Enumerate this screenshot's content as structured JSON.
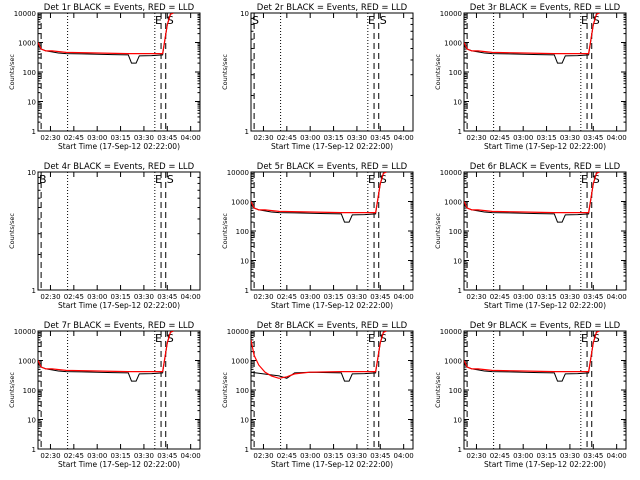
{
  "colors": {
    "events": "#000000",
    "lld": "#ff0000",
    "axes": "#000000"
  },
  "chart_data": [
    {
      "type": "line",
      "title": "Det 1r BLACK = Events, RED = LLD",
      "xlabel": "Start Time (17-Sep-12 02:22:00)",
      "ylabel": "Counts/sec",
      "x_ticks": [
        "02:30",
        "02:45",
        "03:00",
        "03:15",
        "03:30",
        "03:45",
        "04:00"
      ],
      "y_ticks": [
        "1",
        "10",
        "100",
        "1000",
        "10000"
      ],
      "y_scale": "log",
      "ylim": [
        1,
        10000
      ],
      "markers": [
        {
          "label": "E",
          "at": "03:41"
        },
        {
          "label": "S",
          "at": "03:44"
        }
      ],
      "series": [
        {
          "name": "Events",
          "x": [
            "02:22",
            "02:24",
            "02:27",
            "02:31",
            "02:35",
            "02:40",
            "02:50",
            "03:00",
            "03:10",
            "03:20",
            "03:22",
            "03:25",
            "03:27",
            "03:35",
            "03:42",
            "03:45",
            "03:47",
            "03:49"
          ],
          "y": [
            800,
            600,
            520,
            480,
            440,
            420,
            410,
            400,
            390,
            380,
            200,
            200,
            350,
            360,
            380,
            4000,
            9000,
            10000
          ]
        },
        {
          "name": "LLD",
          "x": [
            "02:22",
            "02:24",
            "02:27",
            "02:31",
            "02:40",
            "03:00",
            "03:20",
            "03:30",
            "03:42",
            "03:45",
            "03:47",
            "03:49"
          ],
          "y": [
            1000,
            600,
            520,
            520,
            460,
            440,
            420,
            420,
            420,
            4000,
            9000,
            10000
          ]
        }
      ]
    },
    {
      "type": "line",
      "title": "Det 2r BLACK = Events, RED = LLD",
      "xlabel": "Start Time (17-Sep-12 02:22:00)",
      "ylabel": "Counts/sec",
      "x_ticks": [
        "02:30",
        "02:45",
        "03:00",
        "03:15",
        "03:30",
        "03:45",
        "04:00"
      ],
      "y_ticks": [
        "1",
        "10"
      ],
      "y_scale": "log",
      "ylim": [
        1,
        10
      ],
      "markers": [
        {
          "label": "S",
          "at": "02:22"
        },
        {
          "label": "E",
          "at": "03:41"
        },
        {
          "label": "S",
          "at": "03:44"
        }
      ],
      "series": []
    },
    {
      "type": "line",
      "title": "Det 3r BLACK = Events, RED = LLD",
      "xlabel": "Start Time (17-Sep-12 02:22:00)",
      "ylabel": "Counts/sec",
      "x_ticks": [
        "02:30",
        "02:45",
        "03:00",
        "03:15",
        "03:30",
        "03:45",
        "04:00"
      ],
      "y_ticks": [
        "1",
        "10",
        "100",
        "1000",
        "10000"
      ],
      "y_scale": "log",
      "ylim": [
        1,
        10000
      ],
      "markers": [
        {
          "label": "E",
          "at": "03:41"
        },
        {
          "label": "S",
          "at": "03:44"
        }
      ],
      "series": [
        {
          "name": "Events",
          "x": [
            "02:22",
            "02:24",
            "02:27",
            "02:31",
            "02:35",
            "02:40",
            "02:50",
            "03:00",
            "03:10",
            "03:20",
            "03:22",
            "03:25",
            "03:27",
            "03:35",
            "03:42",
            "03:45",
            "03:47",
            "03:49"
          ],
          "y": [
            800,
            600,
            520,
            480,
            440,
            420,
            410,
            400,
            390,
            380,
            200,
            200,
            350,
            360,
            380,
            4000,
            9000,
            10000
          ]
        },
        {
          "name": "LLD",
          "x": [
            "02:22",
            "02:24",
            "02:27",
            "02:31",
            "02:40",
            "03:00",
            "03:20",
            "03:30",
            "03:42",
            "03:45",
            "03:47",
            "03:49"
          ],
          "y": [
            1000,
            600,
            520,
            520,
            460,
            440,
            420,
            420,
            420,
            4000,
            9000,
            10000
          ]
        }
      ]
    },
    {
      "type": "line",
      "title": "Det 4r BLACK = Events, RED = LLD",
      "xlabel": "Start Time (17-Sep-12 02:22:00)",
      "ylabel": "Counts/sec",
      "x_ticks": [
        "02:30",
        "02:45",
        "03:00",
        "03:15",
        "03:30",
        "03:45",
        "04:00"
      ],
      "y_ticks": [
        "1",
        "10"
      ],
      "y_scale": "log",
      "ylim": [
        1,
        10
      ],
      "markers": [
        {
          "label": "B",
          "at": "02:22"
        },
        {
          "label": "E",
          "at": "03:41"
        },
        {
          "label": "S",
          "at": "03:44"
        }
      ],
      "series": []
    },
    {
      "type": "line",
      "title": "Det 5r BLACK = Events, RED = LLD",
      "xlabel": "Start Time (17-Sep-12 02:22:00)",
      "ylabel": "Counts/sec",
      "x_ticks": [
        "02:30",
        "02:45",
        "03:00",
        "03:15",
        "03:30",
        "03:45",
        "04:00"
      ],
      "y_ticks": [
        "1",
        "10",
        "100",
        "1000",
        "10000"
      ],
      "y_scale": "log",
      "ylim": [
        1,
        10000
      ],
      "markers": [
        {
          "label": "E",
          "at": "03:41"
        },
        {
          "label": "S",
          "at": "03:44"
        }
      ],
      "series": [
        {
          "name": "Events",
          "x": [
            "02:22",
            "02:24",
            "02:27",
            "02:31",
            "02:35",
            "02:40",
            "02:50",
            "03:00",
            "03:10",
            "03:20",
            "03:22",
            "03:25",
            "03:27",
            "03:35",
            "03:42",
            "03:45",
            "03:47",
            "03:49"
          ],
          "y": [
            800,
            600,
            520,
            480,
            440,
            420,
            410,
            400,
            390,
            380,
            200,
            200,
            350,
            360,
            380,
            4000,
            9000,
            10000
          ]
        },
        {
          "name": "LLD",
          "x": [
            "02:22",
            "02:24",
            "02:27",
            "02:31",
            "02:40",
            "03:00",
            "03:20",
            "03:30",
            "03:42",
            "03:45",
            "03:47",
            "03:49"
          ],
          "y": [
            1000,
            600,
            520,
            520,
            460,
            440,
            420,
            420,
            420,
            4000,
            9000,
            10000
          ]
        }
      ]
    },
    {
      "type": "line",
      "title": "Det 6r BLACK = Events, RED = LLD",
      "xlabel": "Start Time (17-Sep-12 02:22:00)",
      "ylabel": "Counts/sec",
      "x_ticks": [
        "02:30",
        "02:45",
        "03:00",
        "03:15",
        "03:30",
        "03:45",
        "04:00"
      ],
      "y_ticks": [
        "1",
        "10",
        "100",
        "1000",
        "10000"
      ],
      "y_scale": "log",
      "ylim": [
        1,
        10000
      ],
      "markers": [
        {
          "label": "E",
          "at": "03:41"
        },
        {
          "label": "S",
          "at": "03:44"
        }
      ],
      "series": [
        {
          "name": "Events",
          "x": [
            "02:22",
            "02:24",
            "02:27",
            "02:31",
            "02:35",
            "02:40",
            "02:50",
            "03:00",
            "03:10",
            "03:20",
            "03:22",
            "03:25",
            "03:27",
            "03:35",
            "03:42",
            "03:45",
            "03:47",
            "03:49"
          ],
          "y": [
            800,
            600,
            520,
            480,
            440,
            420,
            410,
            400,
            390,
            380,
            200,
            200,
            350,
            360,
            380,
            4000,
            9000,
            10000
          ]
        },
        {
          "name": "LLD",
          "x": [
            "02:22",
            "02:24",
            "02:27",
            "02:31",
            "02:40",
            "03:00",
            "03:20",
            "03:30",
            "03:42",
            "03:45",
            "03:47",
            "03:49"
          ],
          "y": [
            1000,
            600,
            520,
            520,
            460,
            440,
            420,
            420,
            420,
            4000,
            9000,
            10000
          ]
        }
      ]
    },
    {
      "type": "line",
      "title": "Det 7r BLACK = Events, RED = LLD",
      "xlabel": "Start Time (17-Sep-12 02:22:00)",
      "ylabel": "Counts/sec",
      "x_ticks": [
        "02:30",
        "02:45",
        "03:00",
        "03:15",
        "03:30",
        "03:45",
        "04:00"
      ],
      "y_ticks": [
        "1",
        "10",
        "100",
        "1000",
        "10000"
      ],
      "y_scale": "log",
      "ylim": [
        1,
        10000
      ],
      "markers": [
        {
          "label": "E",
          "at": "03:41"
        },
        {
          "label": "S",
          "at": "03:44"
        }
      ],
      "series": [
        {
          "name": "Events",
          "x": [
            "02:22",
            "02:24",
            "02:27",
            "02:31",
            "02:35",
            "02:40",
            "02:50",
            "03:00",
            "03:10",
            "03:20",
            "03:22",
            "03:25",
            "03:27",
            "03:35",
            "03:42",
            "03:45",
            "03:47",
            "03:49"
          ],
          "y": [
            800,
            600,
            520,
            480,
            440,
            420,
            410,
            400,
            390,
            380,
            200,
            200,
            350,
            360,
            380,
            4000,
            9000,
            10000
          ]
        },
        {
          "name": "LLD",
          "x": [
            "02:22",
            "02:24",
            "02:27",
            "02:31",
            "02:40",
            "03:00",
            "03:20",
            "03:30",
            "03:42",
            "03:45",
            "03:47",
            "03:49"
          ],
          "y": [
            1000,
            600,
            520,
            520,
            460,
            440,
            420,
            420,
            420,
            4000,
            9000,
            10000
          ]
        }
      ]
    },
    {
      "type": "line",
      "title": "Det 8r BLACK = Events, RED = LLD",
      "xlabel": "Start Time (17-Sep-12 02:22:00)",
      "ylabel": "Counts/sec",
      "x_ticks": [
        "02:30",
        "02:45",
        "03:00",
        "03:15",
        "03:30",
        "03:45",
        "04:00"
      ],
      "y_ticks": [
        "1",
        "10",
        "100",
        "1000",
        "10000"
      ],
      "y_scale": "log",
      "ylim": [
        1,
        10000
      ],
      "markers": [
        {
          "label": "E",
          "at": "03:41"
        },
        {
          "label": "S",
          "at": "03:44"
        }
      ],
      "series": [
        {
          "name": "Events",
          "x": [
            "02:22",
            "02:30",
            "02:40",
            "02:45",
            "02:50",
            "03:00",
            "03:20",
            "03:22",
            "03:25",
            "03:27",
            "03:35",
            "03:42",
            "03:45",
            "03:47",
            "03:49"
          ],
          "y": [
            400,
            350,
            300,
            250,
            380,
            400,
            380,
            200,
            200,
            350,
            360,
            380,
            4000,
            9000,
            10000
          ]
        },
        {
          "name": "LLD",
          "x": [
            "02:22",
            "02:24",
            "02:27",
            "02:31",
            "02:35",
            "02:40",
            "02:45",
            "02:50",
            "03:00",
            "03:20",
            "03:30",
            "03:42",
            "03:45",
            "03:47",
            "03:49"
          ],
          "y": [
            5000,
            1500,
            700,
            400,
            300,
            250,
            280,
            350,
            400,
            420,
            420,
            420,
            4000,
            9000,
            10000
          ]
        }
      ]
    },
    {
      "type": "line",
      "title": "Det 9r BLACK = Events, RED = LLD",
      "xlabel": "Start Time (17-Sep-12 02:22:00)",
      "ylabel": "Counts/sec",
      "x_ticks": [
        "02:30",
        "02:45",
        "03:00",
        "03:15",
        "03:30",
        "03:45",
        "04:00"
      ],
      "y_ticks": [
        "1",
        "10",
        "100",
        "1000",
        "10000"
      ],
      "y_scale": "log",
      "ylim": [
        1,
        10000
      ],
      "markers": [
        {
          "label": "E",
          "at": "03:41"
        },
        {
          "label": "S",
          "at": "03:44"
        }
      ],
      "series": [
        {
          "name": "Events",
          "x": [
            "02:22",
            "02:24",
            "02:27",
            "02:31",
            "02:35",
            "02:40",
            "02:50",
            "03:00",
            "03:10",
            "03:20",
            "03:22",
            "03:25",
            "03:27",
            "03:35",
            "03:42",
            "03:45",
            "03:47",
            "03:49"
          ],
          "y": [
            800,
            600,
            520,
            480,
            440,
            420,
            410,
            400,
            390,
            380,
            200,
            200,
            350,
            360,
            380,
            4000,
            9000,
            10000
          ]
        },
        {
          "name": "LLD",
          "x": [
            "02:22",
            "02:24",
            "02:27",
            "02:31",
            "02:40",
            "03:00",
            "03:20",
            "03:30",
            "03:42",
            "03:45",
            "03:47",
            "03:49"
          ],
          "y": [
            1000,
            600,
            520,
            520,
            460,
            440,
            420,
            420,
            420,
            4000,
            9000,
            10000
          ]
        }
      ]
    }
  ]
}
